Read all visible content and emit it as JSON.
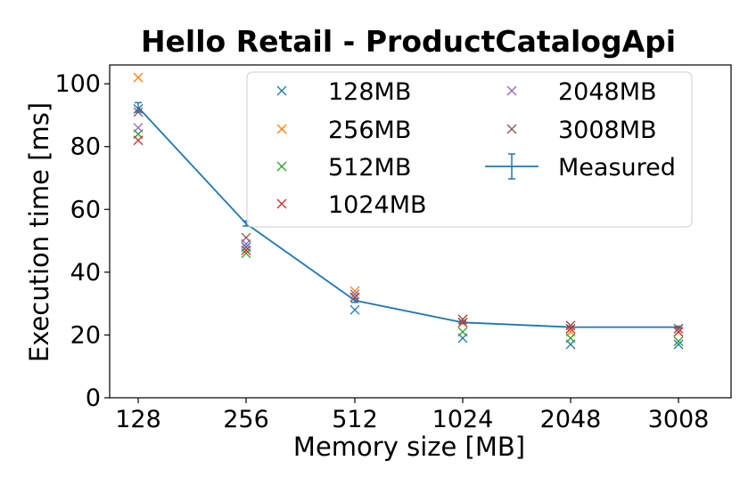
{
  "chart_data": {
    "type": "scatter",
    "title": "Hello Retail - ProductCatalogApi",
    "xlabel": "Memory size [MB]",
    "ylabel": "Execution time [ms]",
    "categories": [
      "128",
      "256",
      "512",
      "1024",
      "2048",
      "3008"
    ],
    "ylim": [
      0,
      106
    ],
    "yticks": [
      0,
      20,
      40,
      60,
      80,
      100
    ],
    "grid": false,
    "legend_position": "top-right",
    "series": [
      {
        "name": "128MB",
        "color": "#1f77b4",
        "marker": "x",
        "values": [
          92,
          48,
          28,
          19,
          17,
          17
        ]
      },
      {
        "name": "256MB",
        "color": "#ff7f0e",
        "marker": "x",
        "values": [
          102,
          47,
          34,
          24,
          21,
          21
        ]
      },
      {
        "name": "512MB",
        "color": "#2ca02c",
        "marker": "x",
        "values": [
          84,
          46,
          32,
          21,
          19,
          18
        ]
      },
      {
        "name": "1024MB",
        "color": "#d62728",
        "marker": "x",
        "values": [
          82,
          47,
          32,
          24,
          22,
          21
        ]
      },
      {
        "name": "2048MB",
        "color": "#9467bd",
        "marker": "x",
        "values": [
          86,
          49,
          33,
          25,
          23,
          22
        ]
      },
      {
        "name": "3008MB",
        "color": "#8c564b",
        "marker": "x",
        "values": [
          91,
          51,
          32,
          25,
          23,
          22
        ]
      }
    ],
    "measured": {
      "name": "Measured",
      "color": "#1f77b4",
      "values": [
        92.5,
        55.5,
        31,
        24,
        22.5,
        22.5
      ],
      "errors": [
        1.5,
        0.8,
        0.6,
        0.4,
        0.3,
        0.3
      ]
    }
  }
}
